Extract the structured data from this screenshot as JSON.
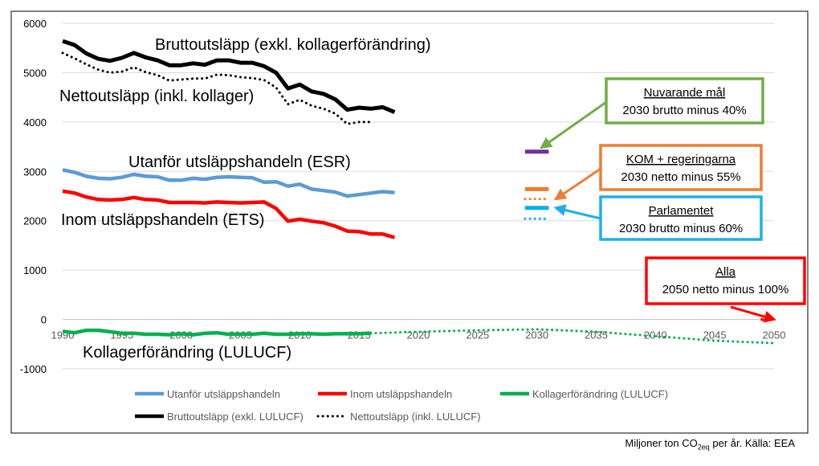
{
  "chart_data": {
    "type": "line",
    "ylim": [
      -1000,
      6000
    ],
    "xlim": [
      1990,
      2050
    ],
    "y_ticks": [
      -1000,
      0,
      1000,
      2000,
      3000,
      4000,
      5000,
      6000
    ],
    "x_ticks": [
      1990,
      1995,
      2000,
      2005,
      2010,
      2015,
      2020,
      2025,
      2030,
      2035,
      2040,
      2045,
      2050
    ],
    "grid": "horizontal",
    "series": [
      {
        "name": "Utanför utsläppshandeln",
        "key": "esr",
        "color": "#5b9bd5",
        "style": "solid",
        "x": [
          1990,
          1991,
          1992,
          1993,
          1994,
          1995,
          1996,
          1997,
          1998,
          1999,
          2000,
          2001,
          2002,
          2003,
          2004,
          2005,
          2006,
          2007,
          2008,
          2009,
          2010,
          2011,
          2012,
          2013,
          2014,
          2015,
          2016,
          2017,
          2018
        ],
        "values": [
          3030,
          2980,
          2900,
          2860,
          2850,
          2880,
          2940,
          2900,
          2890,
          2820,
          2820,
          2860,
          2840,
          2880,
          2890,
          2880,
          2870,
          2780,
          2790,
          2700,
          2740,
          2640,
          2610,
          2580,
          2500,
          2530,
          2560,
          2590,
          2570
        ]
      },
      {
        "name": "Inom utsläppshandeln",
        "key": "ets",
        "color": "#ff0000",
        "style": "solid",
        "x": [
          1990,
          1991,
          1992,
          1993,
          1994,
          1995,
          1996,
          1997,
          1998,
          1999,
          2000,
          2001,
          2002,
          2003,
          2004,
          2005,
          2006,
          2007,
          2008,
          2009,
          2010,
          2011,
          2012,
          2013,
          2014,
          2015,
          2016,
          2017,
          2018
        ],
        "values": [
          2600,
          2560,
          2480,
          2430,
          2420,
          2430,
          2470,
          2430,
          2420,
          2370,
          2370,
          2370,
          2360,
          2380,
          2370,
          2360,
          2370,
          2380,
          2250,
          1990,
          2030,
          1990,
          1960,
          1890,
          1790,
          1780,
          1730,
          1730,
          1660
        ]
      },
      {
        "name": "Kollagerförändring (LULUCF)",
        "key": "lulucf",
        "color": "#00b050",
        "style": "solid",
        "x": [
          1990,
          1991,
          1992,
          1993,
          1994,
          1995,
          1996,
          1997,
          1998,
          1999,
          2000,
          2001,
          2002,
          2003,
          2004,
          2005,
          2006,
          2007,
          2008,
          2009,
          2010,
          2011,
          2012,
          2013,
          2014,
          2015,
          2016
        ],
        "values": [
          -240,
          -270,
          -220,
          -220,
          -250,
          -280,
          -280,
          -300,
          -300,
          -310,
          -290,
          -310,
          -280,
          -270,
          -300,
          -300,
          -300,
          -280,
          -300,
          -300,
          -290,
          -290,
          -300,
          -290,
          -290,
          -290,
          -280
        ]
      },
      {
        "name": "Kollagerförändring projektion",
        "key": "lulucf_proj",
        "color": "#00b050",
        "style": "dotted",
        "x": [
          2016,
          2020,
          2025,
          2030,
          2035,
          2040,
          2045,
          2050
        ],
        "values": [
          -280,
          -250,
          -220,
          -200,
          -250,
          -340,
          -430,
          -480
        ]
      },
      {
        "name": "Bruttoutsläpp (exkl. LULUCF)",
        "key": "brutto",
        "color": "#000000",
        "style": "solid",
        "x": [
          1990,
          1991,
          1992,
          1993,
          1994,
          1995,
          1996,
          1997,
          1998,
          1999,
          2000,
          2001,
          2002,
          2003,
          2004,
          2005,
          2006,
          2007,
          2008,
          2009,
          2010,
          2011,
          2012,
          2013,
          2014,
          2015,
          2016,
          2017,
          2018
        ],
        "values": [
          5640,
          5560,
          5390,
          5280,
          5240,
          5300,
          5400,
          5310,
          5250,
          5150,
          5150,
          5190,
          5160,
          5250,
          5250,
          5200,
          5200,
          5130,
          5000,
          4680,
          4760,
          4620,
          4570,
          4460,
          4250,
          4290,
          4270,
          4300,
          4200
        ]
      },
      {
        "name": "Nettoutsläpp (inkl. LULUCF)",
        "key": "netto",
        "color": "#000000",
        "style": "dotted",
        "x": [
          1990,
          1991,
          1992,
          1993,
          1994,
          1995,
          1996,
          1997,
          1998,
          1999,
          2000,
          2001,
          2002,
          2003,
          2004,
          2005,
          2006,
          2007,
          2008,
          2009,
          2010,
          2011,
          2012,
          2013,
          2014,
          2015,
          2016
        ],
        "values": [
          5400,
          5290,
          5170,
          5060,
          5000,
          5020,
          5110,
          5010,
          4950,
          4840,
          4860,
          4880,
          4880,
          4960,
          4950,
          4910,
          4890,
          4850,
          4700,
          4360,
          4450,
          4330,
          4270,
          4170,
          3960,
          4000,
          4000
        ]
      }
    ],
    "legend": {
      "position": "bottom",
      "items": [
        {
          "label": "Utanför utsläppshandeln",
          "color": "#5b9bd5",
          "style": "solid"
        },
        {
          "label": "Inom utsläppshandeln",
          "color": "#ff0000",
          "style": "solid"
        },
        {
          "label": "Kollagerförändring (LULUCF)",
          "color": "#00b050",
          "style": "solid"
        },
        {
          "label": "Bruttoutsläpp (exkl. LULUCF)",
          "color": "#000000",
          "style": "solid"
        },
        {
          "label": "Nettoutsläpp (inkl. LULUCF)",
          "color": "#000000",
          "style": "dotted"
        }
      ]
    },
    "in_chart_labels": {
      "brutto": "Bruttoutsläpp (exkl. kollagerförändring)",
      "netto": "Nettoutsläpp (inkl. kollager)",
      "esr": "Utanför utsläppshandeln (ESR)",
      "ets": "Inom utsläppshandeln (ETS)",
      "lulucf": "Kollagerförändring (LULUCF)"
    },
    "targets": [
      {
        "key": "nuvarande",
        "year_from": 2029,
        "year_to": 2031,
        "value": 3400,
        "color": "#7030a0",
        "style": "solid"
      },
      {
        "key": "kom_brutto",
        "year_from": 2029,
        "year_to": 2031,
        "value": 2640,
        "color": "#ed7d31",
        "style": "solid"
      },
      {
        "key": "kom_netto",
        "year_from": 2029,
        "year_to": 2031,
        "value": 2440,
        "color": "#ed7d31",
        "style": "dotted"
      },
      {
        "key": "parl_brutto",
        "year_from": 2029,
        "year_to": 2031,
        "value": 2260,
        "color": "#00b0f0",
        "style": "solid"
      },
      {
        "key": "parl_netto",
        "year_from": 2029,
        "year_to": 2031,
        "value": 2040,
        "color": "#00b0f0",
        "style": "dotted"
      },
      {
        "key": "alla",
        "year_from": 2049,
        "year_to": 2050,
        "value": 0,
        "color": "#ff0000",
        "style": "dotted"
      }
    ],
    "callouts": [
      {
        "key": "nuvarande",
        "title": "Nuvarande mål",
        "text": "2030 brutto minus 40%",
        "color": "#70ad47",
        "arrow_to_year": 2030.4,
        "arrow_to_value": 3420
      },
      {
        "key": "kom",
        "title": "KOM + regeringarna",
        "text": "2030 netto minus 55%",
        "color": "#ed7d31",
        "arrow_to_year": 2031.6,
        "arrow_to_value": 2440
      },
      {
        "key": "parl",
        "title": "Parlamentet",
        "text": "2030 brutto minus 60%",
        "color": "#1fb0e8",
        "arrow_to_year": 2031.6,
        "arrow_to_value": 2260
      },
      {
        "key": "alla",
        "title": "Alla",
        "text": "2050 netto minus 100%",
        "color": "#ff0000",
        "arrow_to_year": 2050,
        "arrow_to_value": 0
      }
    ],
    "source_main": "Miljoner ton CO",
    "source_sub": "2eq",
    "source_tail": " per år. Källa: EEA"
  }
}
